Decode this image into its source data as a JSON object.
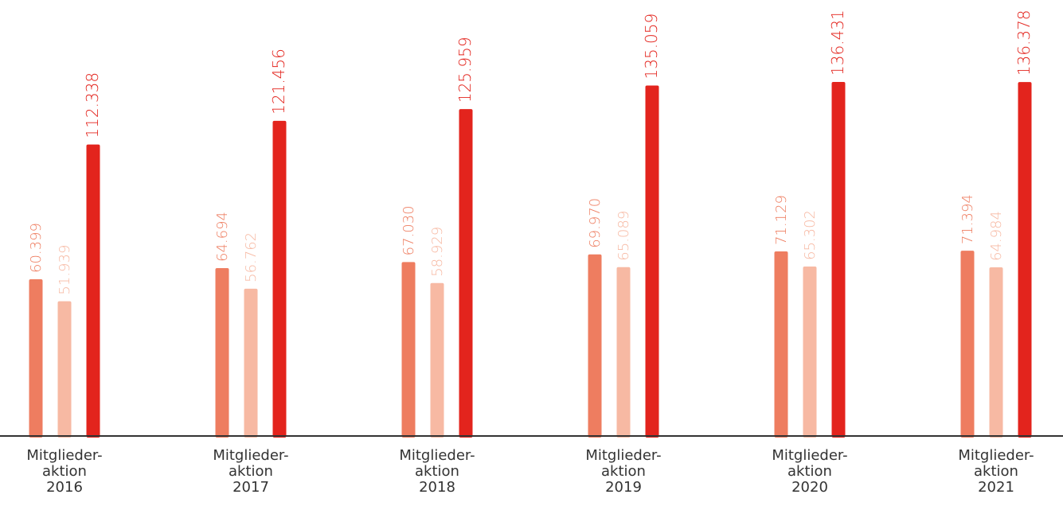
{
  "chart_data": {
    "type": "bar",
    "categories": [
      [
        "Mitglieder-",
        "aktion",
        "2016"
      ],
      [
        "Mitglieder-",
        "aktion",
        "2017"
      ],
      [
        "Mitglieder-",
        "aktion",
        "2018"
      ],
      [
        "Mitglieder-",
        "aktion",
        "2019"
      ],
      [
        "Mitglieder-",
        "aktion",
        "2020"
      ],
      [
        "Mitglieder-",
        "aktion",
        "2021"
      ]
    ],
    "series": [
      {
        "values": [
          60399,
          64694,
          67030,
          69970,
          71129,
          71394
        ],
        "labels": [
          "60.399",
          "64.694",
          "67.030",
          "69.970",
          "71.129",
          "71.394"
        ],
        "color": "#ee7d60"
      },
      {
        "values": [
          51939,
          56762,
          58929,
          65089,
          65302,
          64984
        ],
        "labels": [
          "51.939",
          "56.762",
          "58.929",
          "65.089",
          "65.302",
          "64.984"
        ],
        "color": "#f7b9a3"
      },
      {
        "values": [
          112338,
          121456,
          125959,
          135059,
          136431,
          136378
        ],
        "labels": [
          "112.338",
          "121.456",
          "125.959",
          "135.059",
          "136.431",
          "136.378"
        ],
        "color": "#e3241d"
      }
    ],
    "title": "",
    "xlabel": "",
    "ylabel": "",
    "ylim": [
      0,
      137000
    ],
    "grid": false,
    "legend": "none",
    "axis_color": "#333333"
  }
}
